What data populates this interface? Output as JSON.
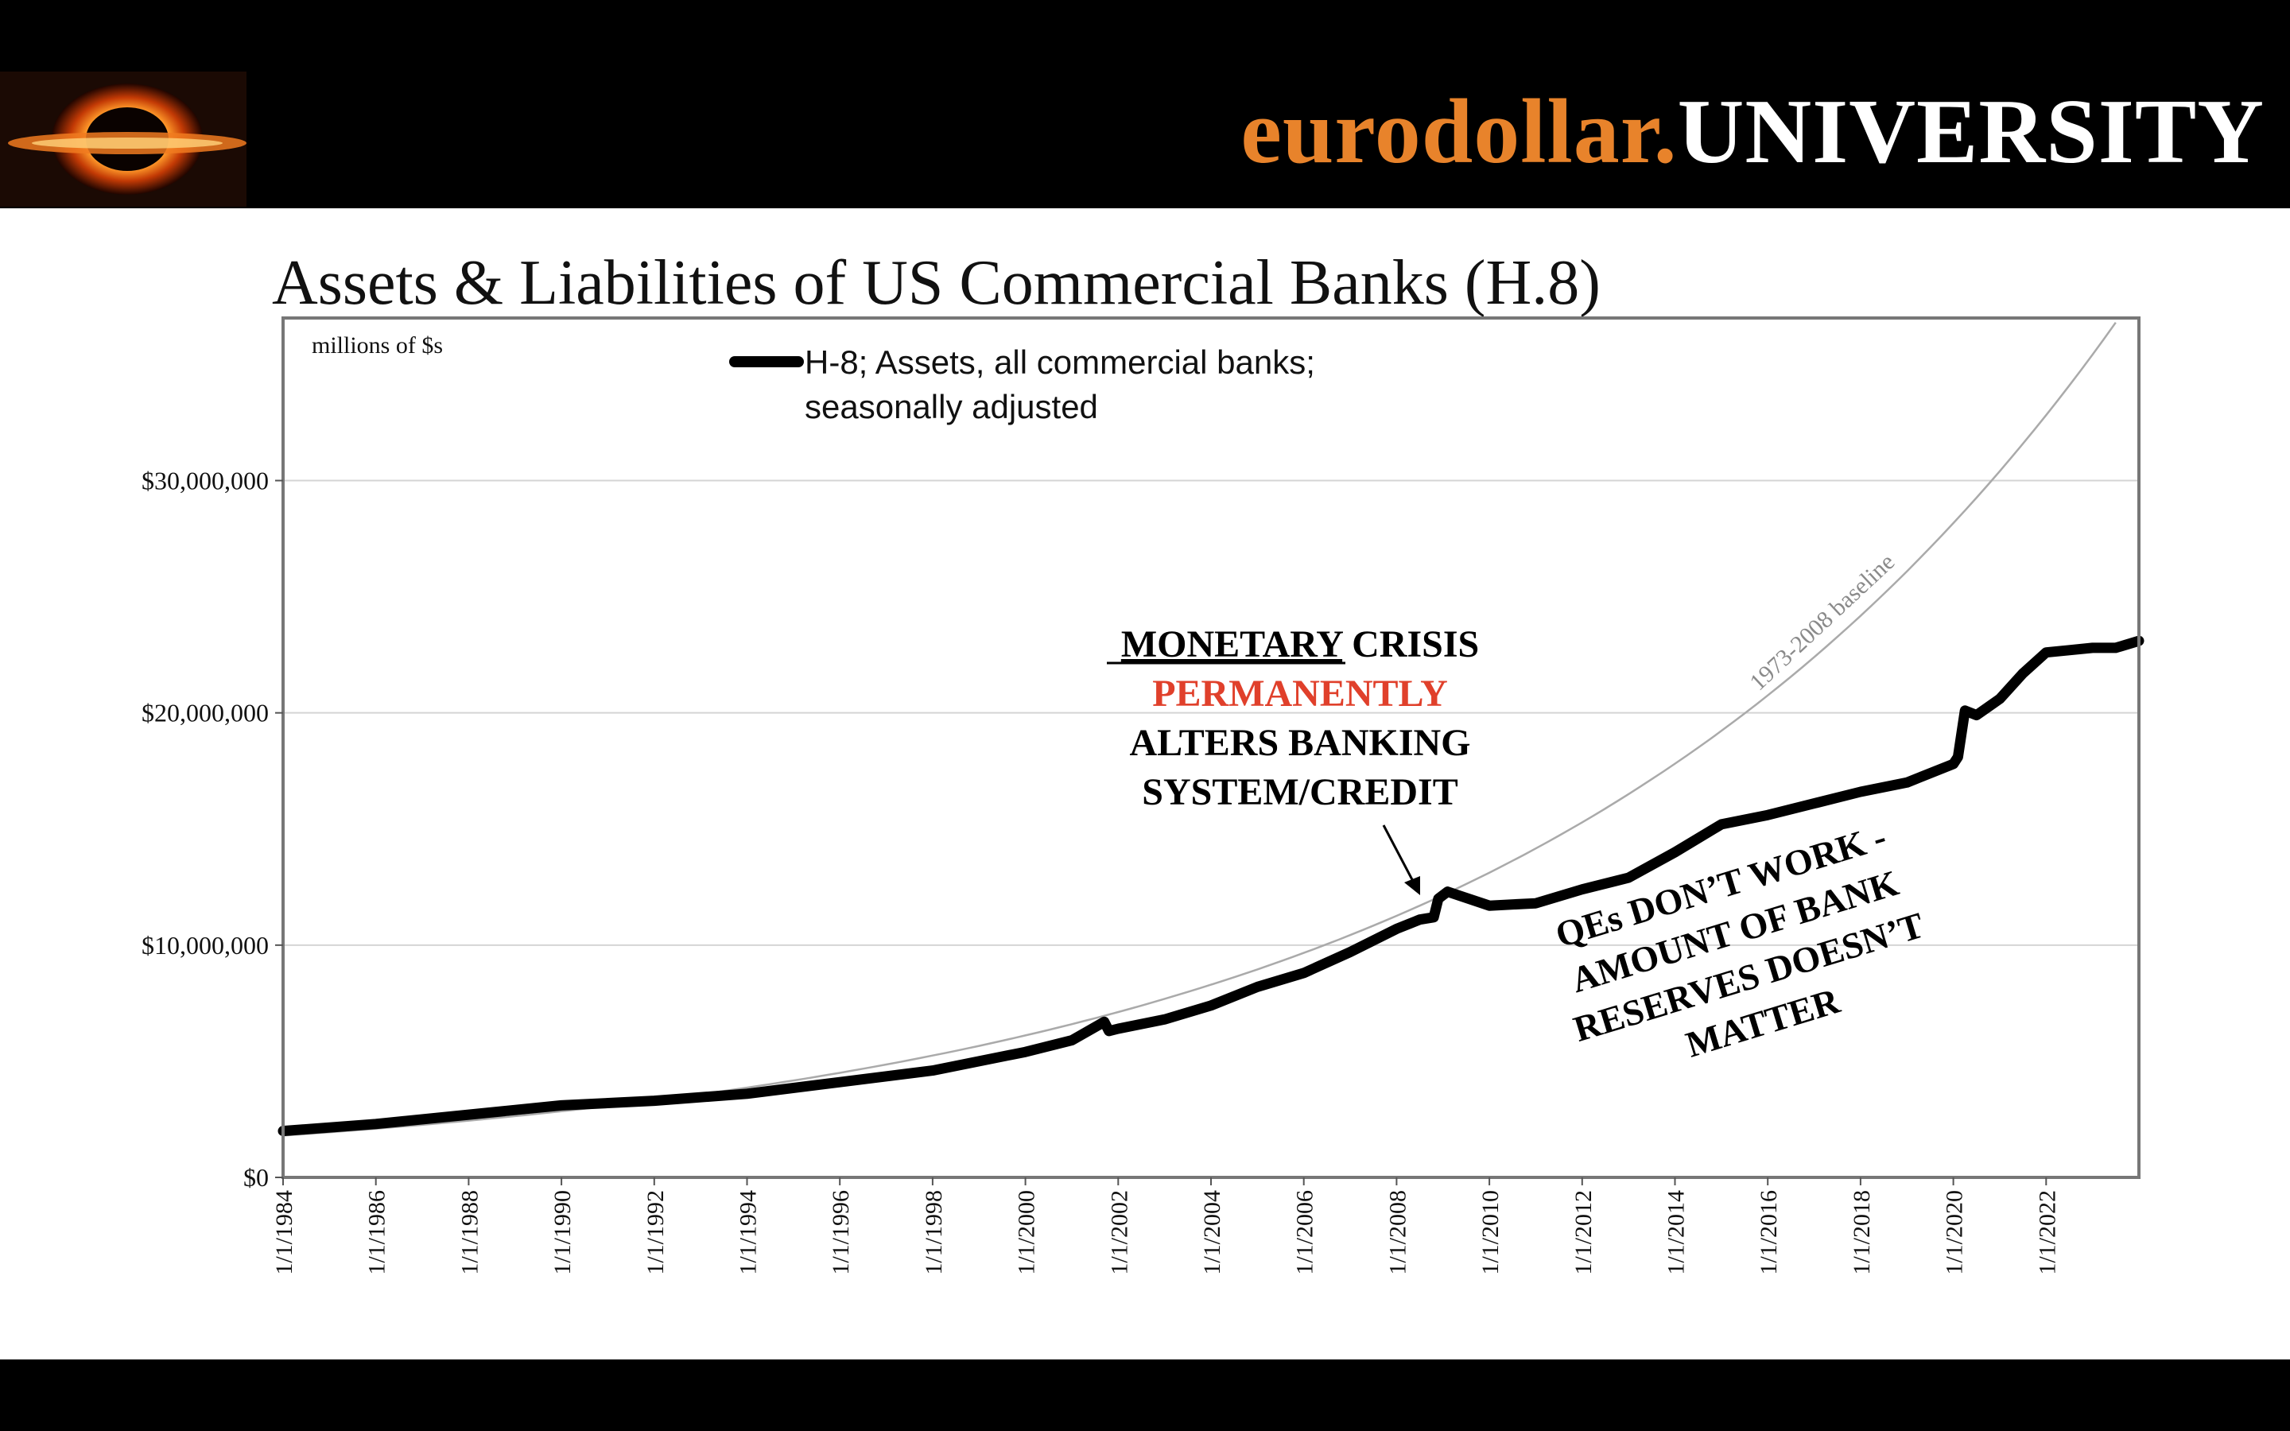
{
  "header": {
    "brand_part1": "eurodollar.",
    "brand_part2": "UNIVERSITY",
    "logo_icon": "orange-ring-logo-icon",
    "brand_color": "#e8832b"
  },
  "chart_data": {
    "type": "line",
    "title": "Assets & Liabilities of US Commercial Banks (H.8)",
    "unit_label": "millions of $s",
    "ylim": [
      0,
      37000000
    ],
    "y_ticks": [
      {
        "value": 0,
        "label": "$0"
      },
      {
        "value": 10000000,
        "label": "$10,000,000"
      },
      {
        "value": 20000000,
        "label": "$20,000,000"
      },
      {
        "value": 30000000,
        "label": "$30,000,000"
      }
    ],
    "xlim": [
      1984,
      2024
    ],
    "x_ticks": [
      {
        "value": 1984,
        "label": "1/1/1984"
      },
      {
        "value": 1986,
        "label": "1/1/1986"
      },
      {
        "value": 1988,
        "label": "1/1/1988"
      },
      {
        "value": 1990,
        "label": "1/1/1990"
      },
      {
        "value": 1992,
        "label": "1/1/1992"
      },
      {
        "value": 1994,
        "label": "1/1/1994"
      },
      {
        "value": 1996,
        "label": "1/1/1996"
      },
      {
        "value": 1998,
        "label": "1/1/1998"
      },
      {
        "value": 2000,
        "label": "1/1/2000"
      },
      {
        "value": 2002,
        "label": "1/1/2002"
      },
      {
        "value": 2004,
        "label": "1/1/2004"
      },
      {
        "value": 2006,
        "label": "1/1/2006"
      },
      {
        "value": 2008,
        "label": "1/1/2008"
      },
      {
        "value": 2010,
        "label": "1/1/2010"
      },
      {
        "value": 2012,
        "label": "1/1/2012"
      },
      {
        "value": 2014,
        "label": "1/1/2014"
      },
      {
        "value": 2016,
        "label": "1/1/2016"
      },
      {
        "value": 2018,
        "label": "1/1/2018"
      },
      {
        "value": 2020,
        "label": "1/1/2020"
      },
      {
        "value": 2022,
        "label": "1/1/2022"
      }
    ],
    "grid": true,
    "legend_line1": "H-8; Assets, all commercial banks;",
    "legend_line2": "seasonally adjusted",
    "series": [
      {
        "name": "H-8; Assets, all commercial banks; seasonally adjusted",
        "color": "#000000",
        "points": [
          [
            1984.0,
            2000000
          ],
          [
            1986.0,
            2300000
          ],
          [
            1988.0,
            2700000
          ],
          [
            1990.0,
            3100000
          ],
          [
            1992.0,
            3300000
          ],
          [
            1994.0,
            3600000
          ],
          [
            1996.0,
            4100000
          ],
          [
            1998.0,
            4600000
          ],
          [
            2000.0,
            5400000
          ],
          [
            2001.0,
            5900000
          ],
          [
            2001.7,
            6700000
          ],
          [
            2001.8,
            6300000
          ],
          [
            2002.0,
            6400000
          ],
          [
            2003.0,
            6800000
          ],
          [
            2004.0,
            7400000
          ],
          [
            2005.0,
            8200000
          ],
          [
            2006.0,
            8800000
          ],
          [
            2007.0,
            9700000
          ],
          [
            2008.0,
            10700000
          ],
          [
            2008.5,
            11100000
          ],
          [
            2008.8,
            11200000
          ],
          [
            2008.9,
            12000000
          ],
          [
            2009.1,
            12300000
          ],
          [
            2009.4,
            12100000
          ],
          [
            2010.0,
            11700000
          ],
          [
            2011.0,
            11800000
          ],
          [
            2012.0,
            12400000
          ],
          [
            2013.0,
            12900000
          ],
          [
            2014.0,
            14000000
          ],
          [
            2015.0,
            15200000
          ],
          [
            2016.0,
            15600000
          ],
          [
            2017.0,
            16100000
          ],
          [
            2018.0,
            16600000
          ],
          [
            2019.0,
            17000000
          ],
          [
            2020.0,
            17800000
          ],
          [
            2020.1,
            18100000
          ],
          [
            2020.25,
            20100000
          ],
          [
            2020.5,
            19900000
          ],
          [
            2021.0,
            20600000
          ],
          [
            2021.5,
            21700000
          ],
          [
            2022.0,
            22600000
          ],
          [
            2022.5,
            22700000
          ],
          [
            2023.0,
            22800000
          ],
          [
            2023.5,
            22800000
          ],
          [
            2024.0,
            23100000
          ]
        ]
      }
    ],
    "baseline_label": "1973-2008 baseline",
    "baseline": {
      "start_year": 1984,
      "start_value": 1800000,
      "growth_per_year": 0.0764,
      "end_year": 2023.6
    },
    "annotations": {
      "crisis_line1_a": "MONETARY",
      "crisis_line1_b": " CRISIS",
      "crisis_line2": "PERMANENTLY",
      "crisis_line3": "ALTERS BANKING",
      "crisis_line4": "SYSTEM/CREDIT",
      "qe_line1": "QEs DON’T WORK -",
      "qe_line2": "AMOUNT OF BANK",
      "qe_line3": "RESERVES DOESN’T",
      "qe_line4": "MATTER",
      "arrow_target": [
        2008.3,
        12200000
      ]
    }
  }
}
